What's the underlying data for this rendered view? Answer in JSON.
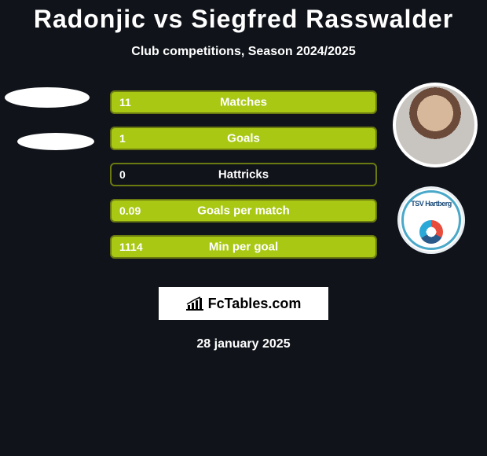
{
  "title": "Radonjic vs Siegfred Rasswalder",
  "subtitle": "Club competitions, Season 2024/2025",
  "date": "28 january 2025",
  "site_logo": {
    "text": "FcTables.com"
  },
  "club_logo_text": "TSV Hartberg",
  "palette": {
    "background": "#10141a",
    "bar_border": "#6b7a10",
    "bar_fill": "#a8c814",
    "white": "#ffffff"
  },
  "bars": [
    {
      "left_value": "11",
      "label": "Matches",
      "fill_percent": 100
    },
    {
      "left_value": "1",
      "label": "Goals",
      "fill_percent": 100
    },
    {
      "left_value": "0",
      "label": "Hattricks",
      "fill_percent": 0
    },
    {
      "left_value": "0.09",
      "label": "Goals per match",
      "fill_percent": 100
    },
    {
      "left_value": "1114",
      "label": "Min per goal",
      "fill_percent": 100
    }
  ]
}
